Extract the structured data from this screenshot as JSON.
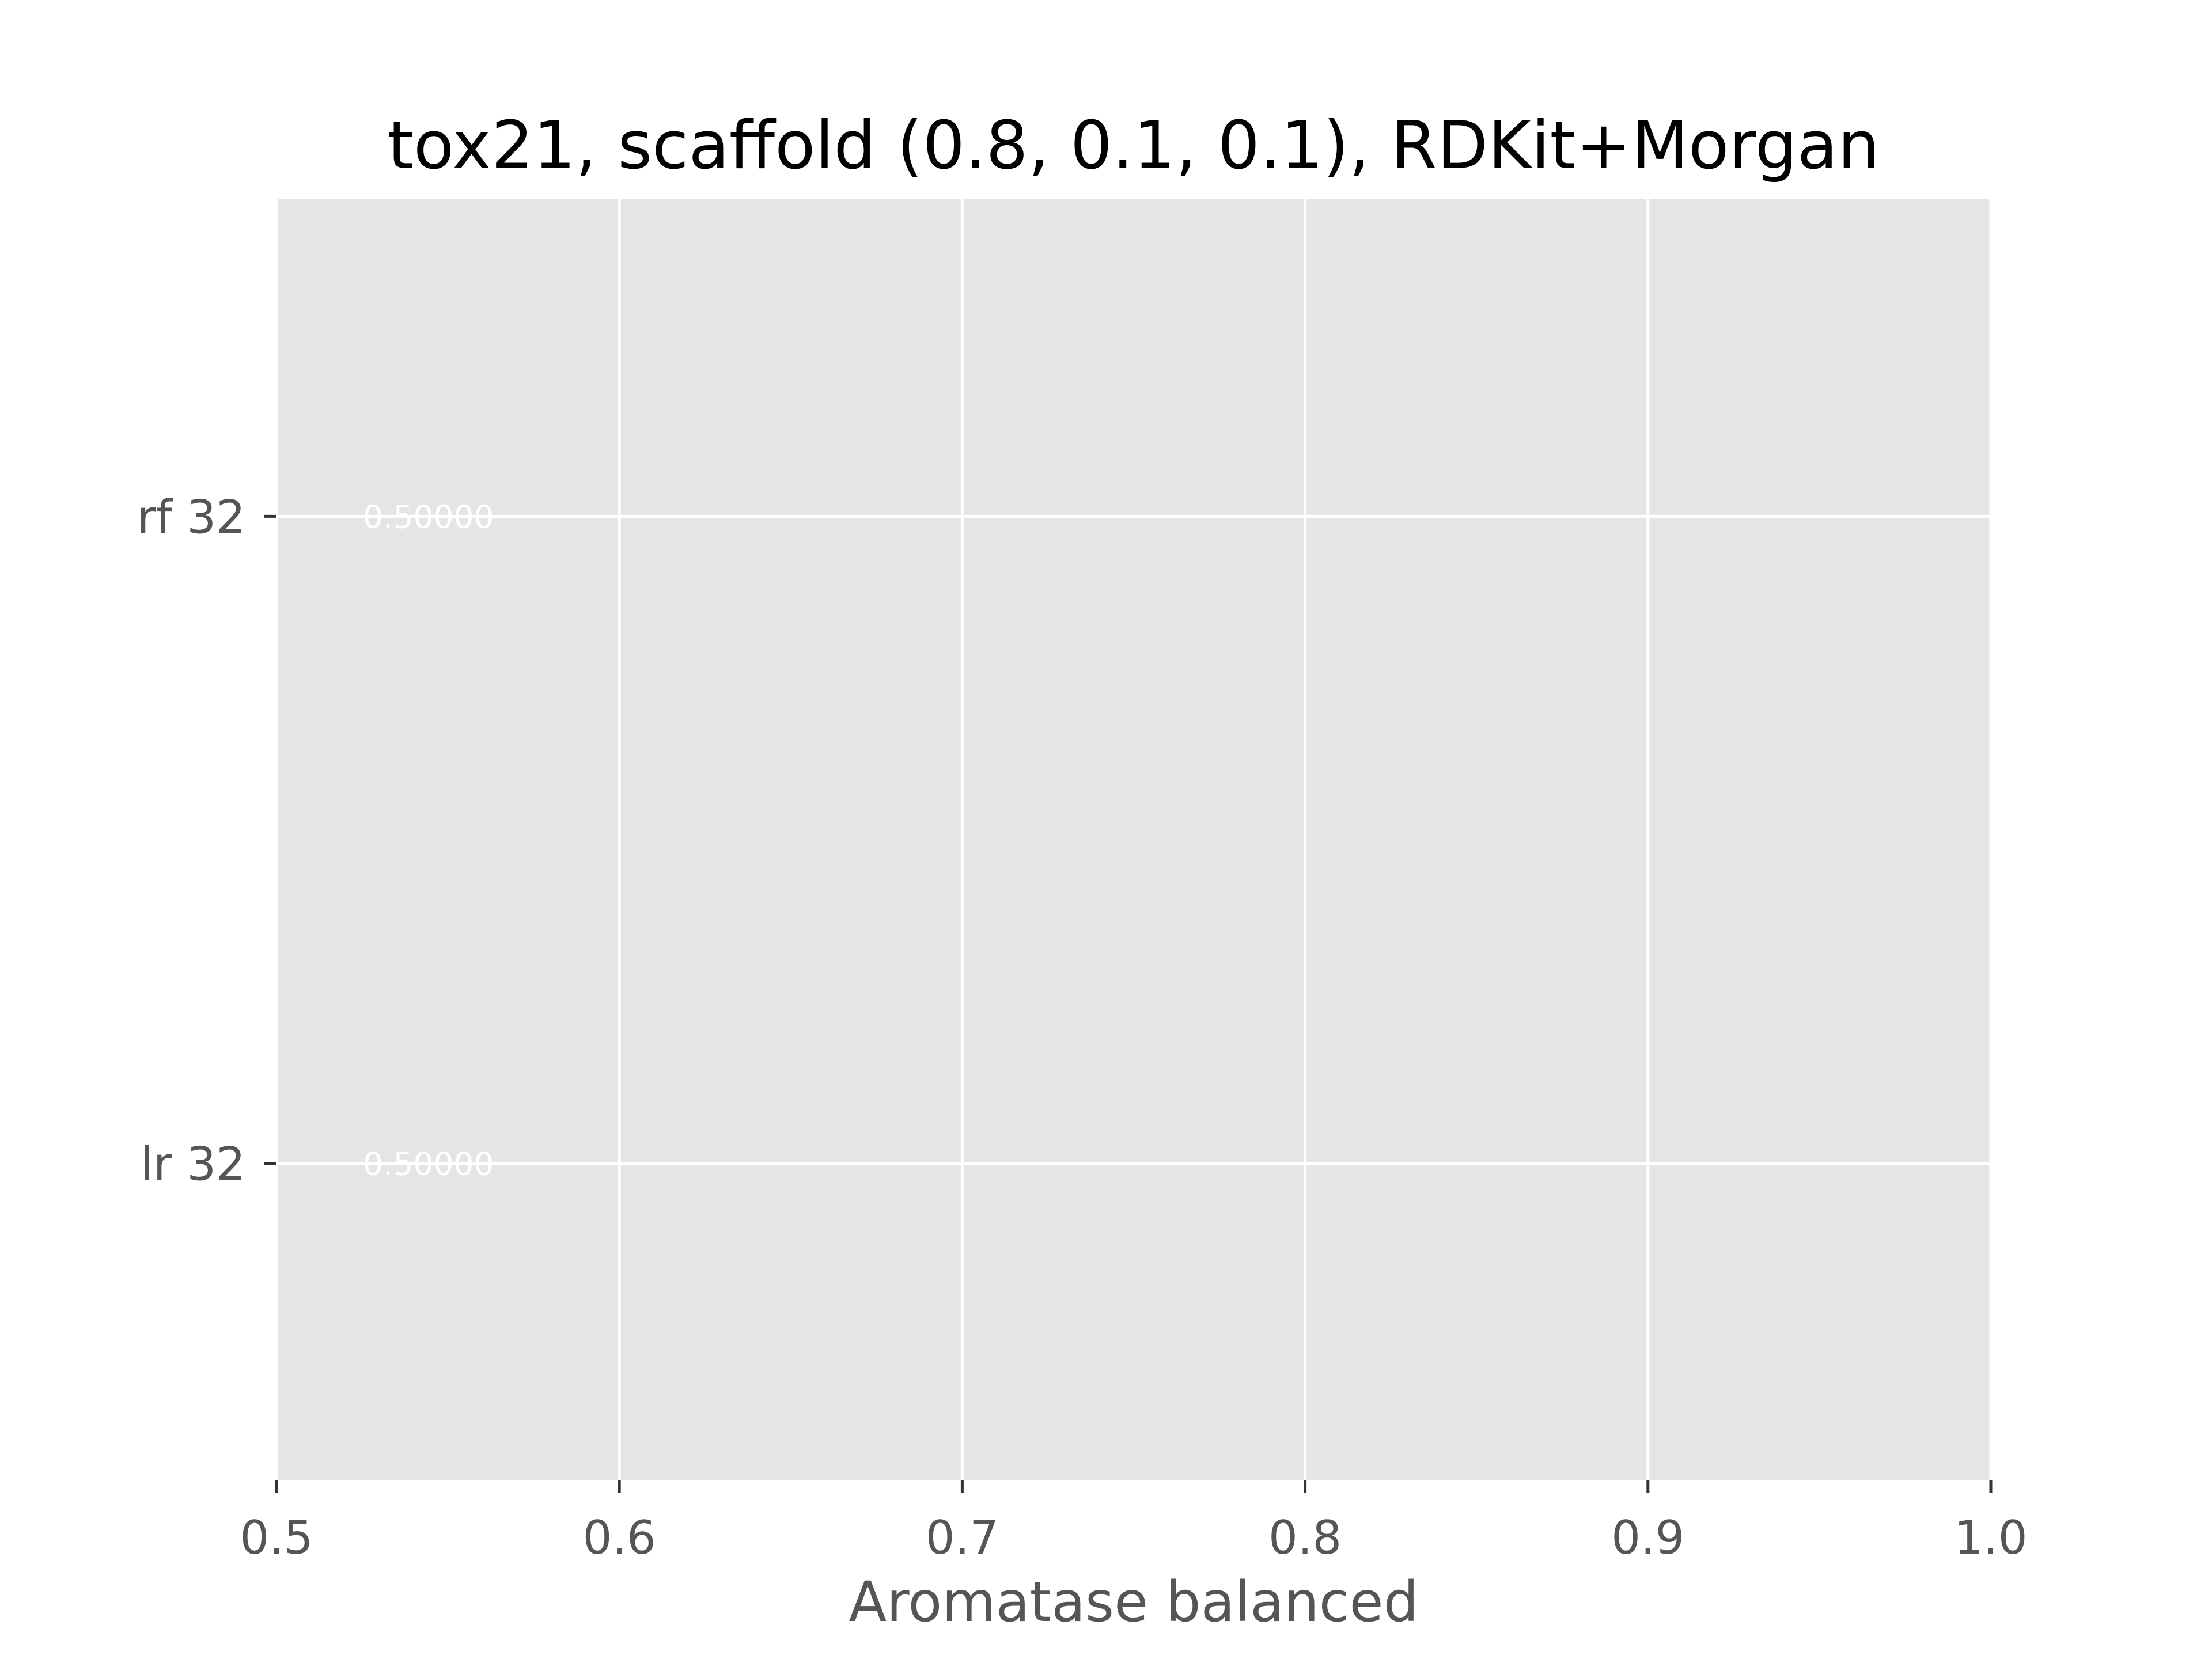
{
  "chart_data": {
    "type": "bar",
    "orientation": "horizontal",
    "title": "tox21, scaffold (0.8, 0.1, 0.1), RDKit+Morgan",
    "xlabel": "Aromatase balanced",
    "ylabel": "",
    "xlim": [
      0.5,
      1.0
    ],
    "xticks": [
      0.5,
      0.6,
      0.7,
      0.8,
      0.9,
      1.0
    ],
    "xtick_labels": [
      "0.5",
      "0.6",
      "0.7",
      "0.8",
      "0.9",
      "1.0"
    ],
    "categories": [
      "lr 32",
      "rf 32"
    ],
    "values": [
      0.5,
      0.5
    ],
    "data_labels": [
      "0.50000",
      "0.50000"
    ],
    "grid": true,
    "style": "ggplot",
    "colors": {
      "plot_background": "#e5e5e5",
      "grid": "#ffffff",
      "tick_text": "#555555",
      "title_text": "#000000",
      "bar_label": "#ffffff"
    }
  }
}
